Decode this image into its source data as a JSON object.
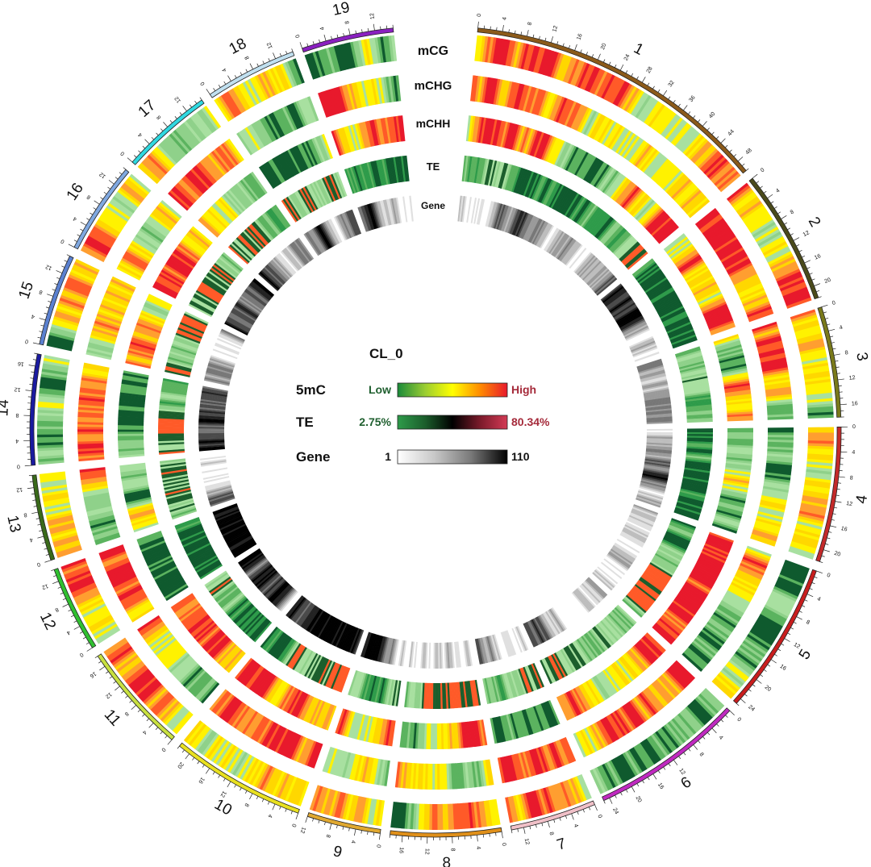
{
  "legend": {
    "title": "CL_0",
    "rows": [
      {
        "label": "5mC",
        "low_text": "Low",
        "high_text": "High",
        "low_color": "#1f5f2f",
        "high_color": "#a52a3a",
        "gradient": [
          "#1a8a3a",
          "#9acd32",
          "#ffff00",
          "#ff8c00",
          "#e8192c"
        ]
      },
      {
        "label": "TE",
        "low_text": "2.75%",
        "high_text": "80.34%",
        "low_color": "#1f5f2f",
        "high_color": "#a52a3a",
        "gradient": [
          "#2e9b4a",
          "#1b5e2c",
          "#000000",
          "#7a1a2a",
          "#d33a55"
        ]
      },
      {
        "label": "Gene",
        "low_text": "1",
        "high_text": "110",
        "low_color": "#111111",
        "high_color": "#111111",
        "gradient": [
          "#ffffff",
          "#c8c8c8",
          "#7a7a7a",
          "#000000"
        ]
      }
    ]
  },
  "tracks": [
    {
      "name": "mCG",
      "palette": "meth"
    },
    {
      "name": "mCHG",
      "palette": "meth"
    },
    {
      "name": "mCHH",
      "palette": "meth"
    },
    {
      "name": "TE",
      "palette": "te"
    },
    {
      "name": "Gene",
      "palette": "gene"
    }
  ],
  "chromosomes": [
    {
      "name": "1",
      "length": 50,
      "tick_step": 4,
      "color": "#8b5a1a"
    },
    {
      "name": "2",
      "length": 22,
      "tick_step": 4,
      "color": "#4a4a1a"
    },
    {
      "name": "3",
      "length": 18,
      "tick_step": 4,
      "color": "#7a7a1a"
    },
    {
      "name": "4",
      "length": 22,
      "tick_step": 4,
      "color": "#c42a2a"
    },
    {
      "name": "5",
      "length": 25,
      "tick_step": 4,
      "color": "#c81e1e"
    },
    {
      "name": "6",
      "length": 25,
      "tick_step": 4,
      "color": "#c02ac0"
    },
    {
      "name": "7",
      "length": 14,
      "tick_step": 4,
      "color": "#f0c0c8"
    },
    {
      "name": "8",
      "length": 18,
      "tick_step": 4,
      "color": "#e0901a"
    },
    {
      "name": "9",
      "length": 12,
      "tick_step": 4,
      "color": "#e0a830"
    },
    {
      "name": "10",
      "length": 22,
      "tick_step": 4,
      "color": "#e8e020"
    },
    {
      "name": "11",
      "length": 18,
      "tick_step": 4,
      "color": "#c8e040"
    },
    {
      "name": "12",
      "length": 14,
      "tick_step": 4,
      "color": "#30c030"
    },
    {
      "name": "13",
      "length": 14,
      "tick_step": 4,
      "color": "#3a6a1a"
    },
    {
      "name": "14",
      "length": 18,
      "tick_step": 4,
      "color": "#1a1aa0"
    },
    {
      "name": "15",
      "length": 15,
      "tick_step": 4,
      "color": "#5a80d0"
    },
    {
      "name": "16",
      "length": 15,
      "tick_step": 4,
      "color": "#80a8e0"
    },
    {
      "name": "17",
      "length": 15,
      "tick_step": 4,
      "color": "#30d8e0"
    },
    {
      "name": "18",
      "length": 15,
      "tick_step": 4,
      "color": "#c0e0f0"
    },
    {
      "name": "19",
      "length": 15,
      "tick_step": 4,
      "color": "#8a20c0"
    }
  ],
  "palettes": {
    "meth": [
      "#0f5a2e",
      "#5bb35f",
      "#8fd18a",
      "#a8e0a0",
      "#fff200",
      "#ffd700",
      "#ff9e30",
      "#ff5a28",
      "#e8192c"
    ],
    "te": [
      "#0f5a2e",
      "#2e9b4a",
      "#5bb35f",
      "#8fd18a",
      "#a8e0a0",
      "#1b5e2c",
      "#ff5a28"
    ],
    "gene": [
      "#ffffff",
      "#e0e0e0",
      "#bdbdbd",
      "#9a9a9a",
      "#777777",
      "#4a4a4a",
      "#222222",
      "#000000"
    ]
  }
}
